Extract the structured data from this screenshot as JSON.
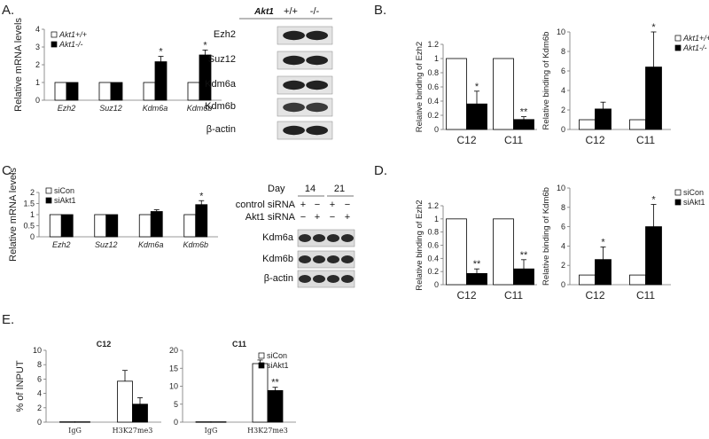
{
  "panel_labels": [
    "A.",
    "B.",
    "C.",
    "D.",
    "E."
  ],
  "chart_data": [
    {
      "id": "A",
      "type": "bar",
      "ylabel": "Relative mRNA levels",
      "ylim": [
        0,
        4
      ],
      "yticks": [
        0,
        1,
        2,
        3,
        4
      ],
      "categories": [
        "Ezh2",
        "Suz12",
        "Kdm6a",
        "Kdm6b"
      ],
      "cat_style": "italic",
      "legend_style": "italic",
      "series": [
        {
          "name": "Akt1+/+",
          "values": [
            1,
            1,
            1,
            1
          ],
          "errors": [
            0,
            0,
            0,
            0
          ]
        },
        {
          "name": "Akt1-/-",
          "values": [
            1,
            1,
            2.17,
            2.55
          ],
          "errors": [
            0,
            0,
            0.3,
            0.28
          ]
        }
      ],
      "annotations": [
        {
          "series": 1,
          "index": 2,
          "text": "*"
        },
        {
          "series": 1,
          "index": 3,
          "text": "*"
        }
      ]
    },
    {
      "id": "B1",
      "type": "bar",
      "ylabel": "Relative binding of Ezh2",
      "ylim": [
        0,
        1.2
      ],
      "yticks": [
        0,
        0.2,
        0.4,
        0.6,
        0.8,
        1,
        1.2
      ],
      "categories": [
        "C12",
        "C11"
      ],
      "cat_style": "big",
      "series": [
        {
          "name": "",
          "values": [
            1,
            1
          ],
          "errors": [
            0,
            0
          ]
        },
        {
          "name": "",
          "values": [
            0.36,
            0.14
          ],
          "errors": [
            0.18,
            0.04
          ]
        }
      ],
      "annotations": [
        {
          "series": 1,
          "index": 0,
          "text": "*"
        },
        {
          "series": 1,
          "index": 1,
          "text": "**"
        }
      ]
    },
    {
      "id": "B2",
      "type": "bar",
      "ylabel": "Relative binding of Kdm6b",
      "ylim": [
        0,
        10
      ],
      "yticks": [
        0,
        2,
        4,
        6,
        8,
        10
      ],
      "categories": [
        "C12",
        "C11"
      ],
      "cat_style": "big",
      "legend_style": "italic",
      "series": [
        {
          "name": "Akt1+/+",
          "values": [
            1,
            1
          ],
          "errors": [
            0,
            0
          ]
        },
        {
          "name": "Akt1-/-",
          "values": [
            2.1,
            6.4
          ],
          "errors": [
            0.7,
            3.6
          ]
        }
      ],
      "annotations": [
        {
          "series": 1,
          "index": 1,
          "text": "*"
        }
      ]
    },
    {
      "id": "C",
      "type": "bar",
      "ylabel": "Relative mRNA levels",
      "ylim": [
        0,
        2
      ],
      "yticks": [
        0,
        0.5,
        1,
        1.5,
        2
      ],
      "categories": [
        "Ezh2",
        "Suz12",
        "Kdm6a",
        "Kdm6b"
      ],
      "cat_style": "italic",
      "series": [
        {
          "name": "siCon",
          "values": [
            1,
            1,
            1,
            1
          ],
          "errors": [
            0,
            0,
            0,
            0
          ]
        },
        {
          "name": "siAkt1",
          "values": [
            1,
            1,
            1.14,
            1.45
          ],
          "errors": [
            0,
            0,
            0.08,
            0.18
          ]
        }
      ],
      "annotations": [
        {
          "series": 1,
          "index": 3,
          "text": "*"
        }
      ]
    },
    {
      "id": "D1",
      "type": "bar",
      "ylabel": "Relative binding of Ezh2",
      "ylim": [
        0,
        1.2
      ],
      "yticks": [
        0,
        0.2,
        0.4,
        0.6,
        0.8,
        1,
        1.2
      ],
      "categories": [
        "C12",
        "C11"
      ],
      "cat_style": "big",
      "series": [
        {
          "name": "",
          "values": [
            1,
            1
          ],
          "errors": [
            0,
            0
          ]
        },
        {
          "name": "",
          "values": [
            0.17,
            0.24
          ],
          "errors": [
            0.07,
            0.14
          ]
        }
      ],
      "annotations": [
        {
          "series": 1,
          "index": 0,
          "text": "**"
        },
        {
          "series": 1,
          "index": 1,
          "text": "**"
        }
      ]
    },
    {
      "id": "D2",
      "type": "bar",
      "ylabel": "Relative binding of Kdm6b",
      "ylim": [
        0,
        10
      ],
      "yticks": [
        0,
        2,
        4,
        6,
        8,
        10
      ],
      "categories": [
        "C12",
        "C11"
      ],
      "cat_style": "big",
      "series": [
        {
          "name": "siCon",
          "values": [
            1,
            1
          ],
          "errors": [
            0,
            0
          ]
        },
        {
          "name": "siAkt1",
          "values": [
            2.6,
            6.0
          ],
          "errors": [
            1.3,
            2.3
          ]
        }
      ],
      "annotations": [
        {
          "series": 1,
          "index": 0,
          "text": "*"
        },
        {
          "series": 1,
          "index": 1,
          "text": "*"
        }
      ]
    },
    {
      "id": "E1",
      "type": "bar",
      "title": "C12",
      "ylabel": "% of INPUT",
      "ylim": [
        0,
        10
      ],
      "yticks": [
        0,
        2,
        4,
        6,
        8,
        10
      ],
      "categories": [
        "IgG",
        "H3K27me3"
      ],
      "cat_style": "serif",
      "series": [
        {
          "name": "",
          "values": [
            0.05,
            5.7
          ],
          "errors": [
            0,
            1.5
          ]
        },
        {
          "name": "",
          "values": [
            0.05,
            2.5
          ],
          "errors": [
            0,
            0.9
          ]
        }
      ],
      "annotations": []
    },
    {
      "id": "E2",
      "type": "bar",
      "title": "C11",
      "ylabel": "",
      "ylim": [
        0,
        20
      ],
      "yticks": [
        0,
        5,
        10,
        15,
        20
      ],
      "categories": [
        "IgG",
        "H3K27me3"
      ],
      "cat_style": "serif",
      "series": [
        {
          "name": "siCon",
          "values": [
            0.1,
            16.3
          ],
          "errors": [
            0,
            1.0
          ]
        },
        {
          "name": "siAkt1",
          "values": [
            0.1,
            8.8
          ],
          "errors": [
            0,
            0.9
          ]
        }
      ],
      "annotations": [
        {
          "series": 1,
          "index": 1,
          "text": "**"
        }
      ]
    }
  ],
  "blots": [
    {
      "id": "A",
      "header_label": "Akt1",
      "columns": [
        "+/+",
        "-/-"
      ],
      "bands": [
        "Ezh2",
        "Suz12",
        "Kdm6a",
        "Kdm6b",
        "β-actin"
      ]
    },
    {
      "id": "C",
      "header_label": "Day",
      "groups": [
        "14",
        "21"
      ],
      "rows": [
        {
          "label": "control siRNA",
          "marks": [
            "+",
            "−",
            "+",
            "−"
          ]
        },
        {
          "label": "Akt1 siRNA",
          "marks": [
            "−",
            "+",
            "−",
            "+"
          ]
        }
      ],
      "bands": [
        "Kdm6a",
        "Kdm6b",
        "β-actin"
      ]
    }
  ],
  "colors": {
    "open_bar": "#ffffff",
    "filled_bar": "#000000",
    "axis": "#777777"
  }
}
